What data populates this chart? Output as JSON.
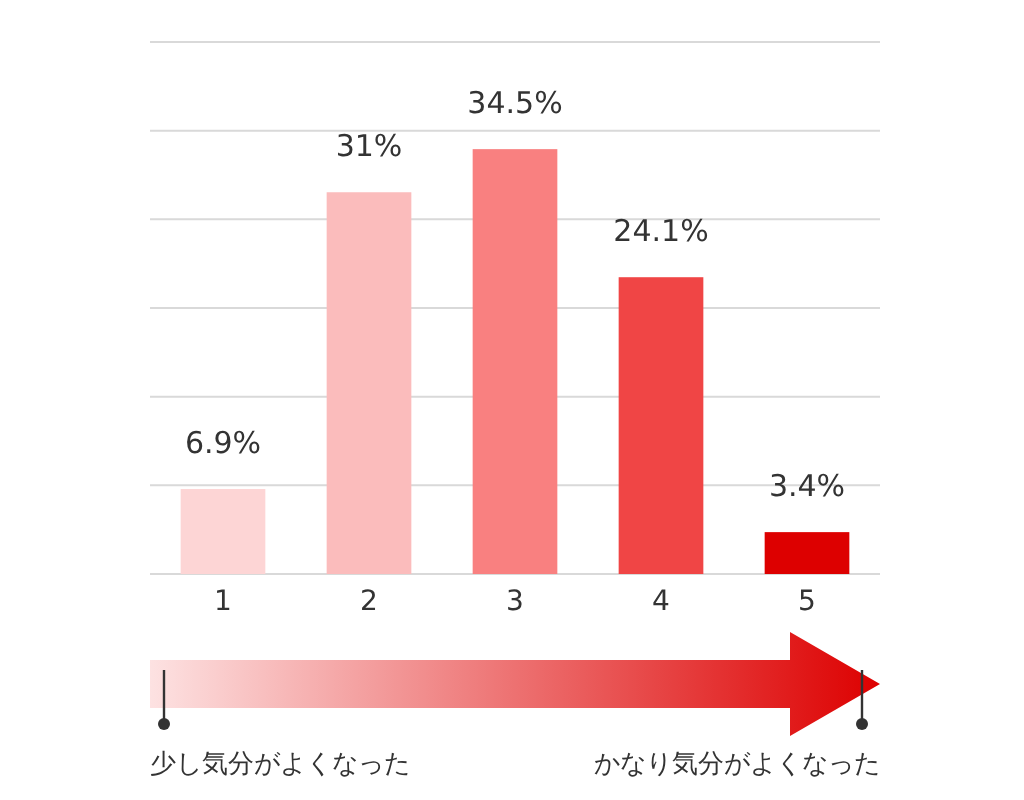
{
  "chart_data": {
    "type": "bar",
    "categories": [
      "1",
      "2",
      "3",
      "4",
      "5"
    ],
    "values": [
      6.9,
      31,
      34.5,
      24.1,
      3.4
    ],
    "value_labels": [
      "6.9%",
      "31%",
      "34.5%",
      "24.1%",
      "3.4%"
    ],
    "colors": [
      "#fdd5d5",
      "#fbbcbc",
      "#f98080",
      "#f04545",
      "#dd0000"
    ],
    "ylim": [
      0,
      43.2
    ],
    "yticks": [
      {
        "value": 0,
        "label": null
      },
      {
        "value": 7.2,
        "label": null
      },
      {
        "value": 14.4,
        "label": null
      },
      {
        "value": 21.6,
        "label": null
      },
      {
        "value": 28.8,
        "label": null
      },
      {
        "value": 36,
        "label": null
      },
      {
        "value": 43.2,
        "label": null
      }
    ],
    "grid": "y",
    "tick_labels": "x",
    "annotations": [
      "少し気分がよくなった",
      "かなり気分がよくなった"
    ]
  }
}
